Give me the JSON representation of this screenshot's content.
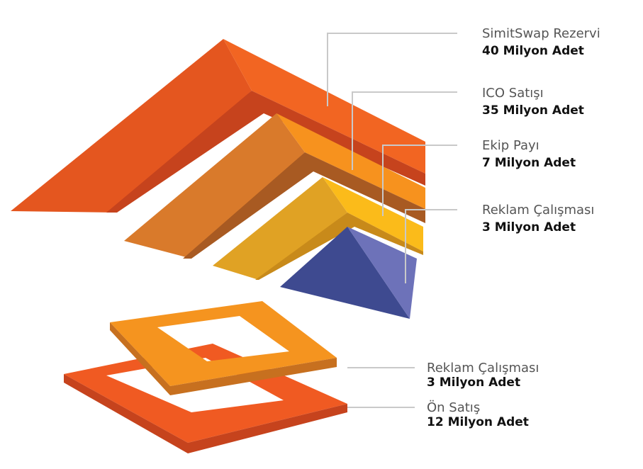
{
  "items": [
    {
      "name": "SimitSwap Rezervi",
      "amount": "40 Milyon Adet"
    },
    {
      "name": "ICO Satışı",
      "amount": "35 Milyon Adet"
    },
    {
      "name": "Ekip Payı",
      "amount": "7 Milyon Adet"
    },
    {
      "name": "Reklam Çalışması",
      "amount": "3 Milyon Adet"
    },
    {
      "name": "Reklam Çalışması",
      "amount": "3 Milyon Adet"
    },
    {
      "name": "Ön Satış",
      "amount": "12 Milyon Adet"
    }
  ]
}
